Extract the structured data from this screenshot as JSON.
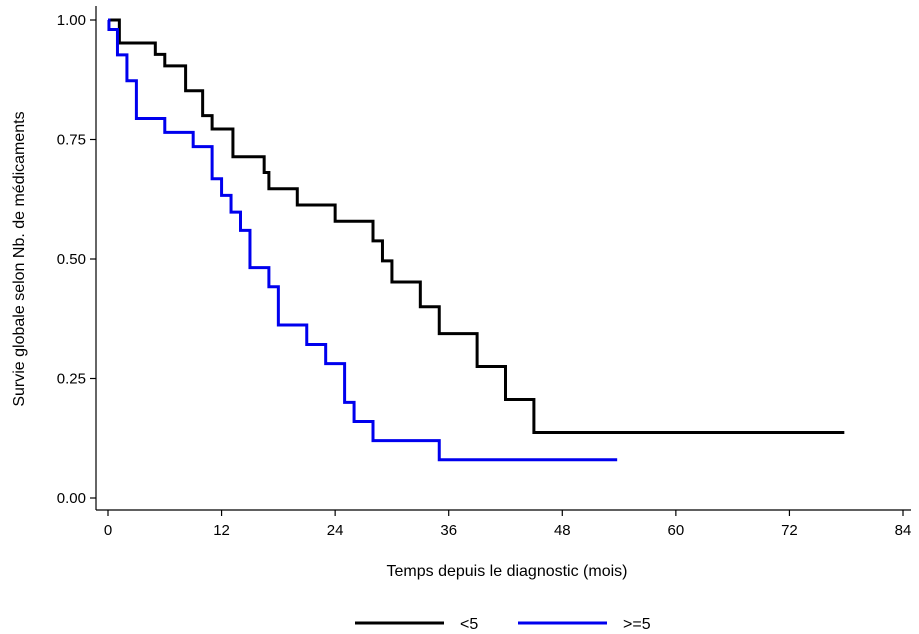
{
  "chart_data": {
    "type": "line",
    "step": true,
    "xlabel": "Temps depuis le diagnostic (mois)",
    "ylabel": "Survie globale selon Nb. de médicaments",
    "xlim": [
      0,
      84
    ],
    "ylim": [
      0,
      1
    ],
    "xticks": [
      0,
      12,
      24,
      36,
      48,
      60,
      72,
      84
    ],
    "yticks": [
      0,
      0.25,
      0.5,
      0.75,
      1.0
    ],
    "xtick_labels": [
      "0",
      "12",
      "24",
      "36",
      "48",
      "60",
      "72",
      "84"
    ],
    "ytick_labels": [
      "0.00",
      "0.25",
      "0.50",
      "0.75",
      "1.00"
    ],
    "grid": false,
    "legend_position": "bottom",
    "series": [
      {
        "name": "<5",
        "color": "#000000",
        "points": [
          [
            0,
            1.0
          ],
          [
            1.2,
            0.952
          ],
          [
            5.0,
            0.928
          ],
          [
            6.0,
            0.904
          ],
          [
            8.2,
            0.852
          ],
          [
            10.0,
            0.8
          ],
          [
            11.0,
            0.772
          ],
          [
            13.2,
            0.714
          ],
          [
            16.5,
            0.681
          ],
          [
            17.0,
            0.647
          ],
          [
            20.0,
            0.613
          ],
          [
            24.0,
            0.579
          ],
          [
            28.0,
            0.538
          ],
          [
            29.0,
            0.496
          ],
          [
            30.0,
            0.452
          ],
          [
            33.0,
            0.4
          ],
          [
            35.0,
            0.344
          ],
          [
            39.0,
            0.275
          ],
          [
            42.0,
            0.206
          ],
          [
            45.0,
            0.137
          ],
          [
            77.8,
            0.137
          ]
        ]
      },
      {
        "name": ">=5",
        "color": "#0000ee",
        "points": [
          [
            0,
            1.0
          ],
          [
            0.1,
            0.98
          ],
          [
            1.0,
            0.927
          ],
          [
            2.0,
            0.873
          ],
          [
            3.0,
            0.794
          ],
          [
            6.0,
            0.765
          ],
          [
            9.0,
            0.735
          ],
          [
            11.0,
            0.668
          ],
          [
            12.0,
            0.633
          ],
          [
            13.0,
            0.598
          ],
          [
            14.0,
            0.56
          ],
          [
            15.0,
            0.482
          ],
          [
            17.0,
            0.442
          ],
          [
            18.0,
            0.362
          ],
          [
            21.0,
            0.321
          ],
          [
            23.0,
            0.281
          ],
          [
            25.0,
            0.2
          ],
          [
            26.0,
            0.16
          ],
          [
            28.0,
            0.12
          ],
          [
            35.0,
            0.08
          ],
          [
            53.8,
            0.08
          ]
        ]
      }
    ]
  }
}
